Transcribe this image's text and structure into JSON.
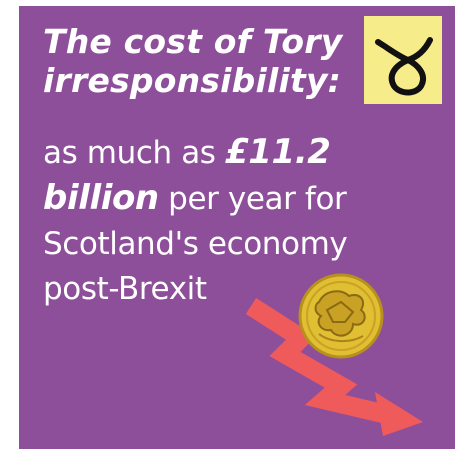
{
  "headline": {
    "line1": "The cost of Tory",
    "line2": "irresponsibility:"
  },
  "body": {
    "part1": "as much as ",
    "amount": "£11.2",
    "amount_word": "billion",
    "part2": " per year for",
    "line3": "Scotland's economy",
    "line4": "post-Brexit"
  },
  "logo": {
    "icon": "snp-logo-icon"
  },
  "coin": {
    "icon": "pound-coin-icon"
  },
  "arrow": {
    "icon": "downward-trend-arrow-icon"
  },
  "colors": {
    "background": "#8e4f9a",
    "logo_yellow": "#f7ec8a",
    "arrow_red": "#ef5a5a",
    "coin_gold": "#e0bf33",
    "text": "#ffffff"
  }
}
